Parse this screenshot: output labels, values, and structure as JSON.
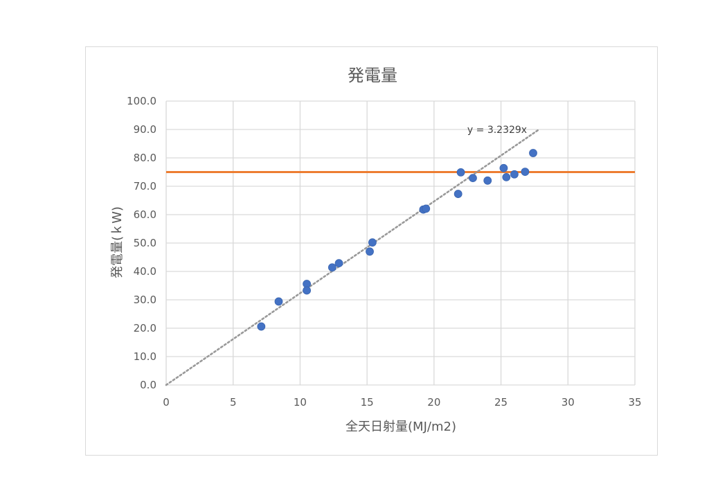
{
  "chart_data": {
    "type": "scatter",
    "title": "発電量",
    "xlabel": "全天日射量(MJ/m2)",
    "ylabel": "発電量(ｋW)",
    "xlim": [
      0,
      35
    ],
    "ylim": [
      0,
      100
    ],
    "x_ticks": [
      "0",
      "5",
      "10",
      "15",
      "20",
      "25",
      "30",
      "35"
    ],
    "y_ticks": [
      "0.0",
      "10.0",
      "20.0",
      "30.0",
      "40.0",
      "50.0",
      "60.0",
      "70.0",
      "80.0",
      "90.0",
      "100.0"
    ],
    "grid": true,
    "legend": "none",
    "series": [
      {
        "color": "#4472c4",
        "points": [
          {
            "x": 7.1,
            "y": 20.6
          },
          {
            "x": 8.4,
            "y": 29.4
          },
          {
            "x": 10.5,
            "y": 35.6
          },
          {
            "x": 10.5,
            "y": 33.3
          },
          {
            "x": 12.4,
            "y": 41.4
          },
          {
            "x": 12.9,
            "y": 42.9
          },
          {
            "x": 15.2,
            "y": 47.0
          },
          {
            "x": 15.4,
            "y": 50.2
          },
          {
            "x": 19.2,
            "y": 61.8
          },
          {
            "x": 19.4,
            "y": 62.1
          },
          {
            "x": 21.8,
            "y": 67.3
          },
          {
            "x": 22.0,
            "y": 74.9
          },
          {
            "x": 22.9,
            "y": 72.9
          },
          {
            "x": 24.0,
            "y": 72.0
          },
          {
            "x": 25.2,
            "y": 76.4
          },
          {
            "x": 25.4,
            "y": 73.2
          },
          {
            "x": 26.0,
            "y": 74.2
          },
          {
            "x": 26.8,
            "y": 75.1
          },
          {
            "x": 27.4,
            "y": 81.7
          }
        ]
      }
    ],
    "trendline": {
      "label": "y = 3.2329x",
      "slope": 3.2329,
      "x_range": [
        0,
        27.8
      ],
      "color": "#999999",
      "style": "dotted"
    },
    "reference_line": {
      "y": 75,
      "color": "#ed7d31"
    }
  }
}
